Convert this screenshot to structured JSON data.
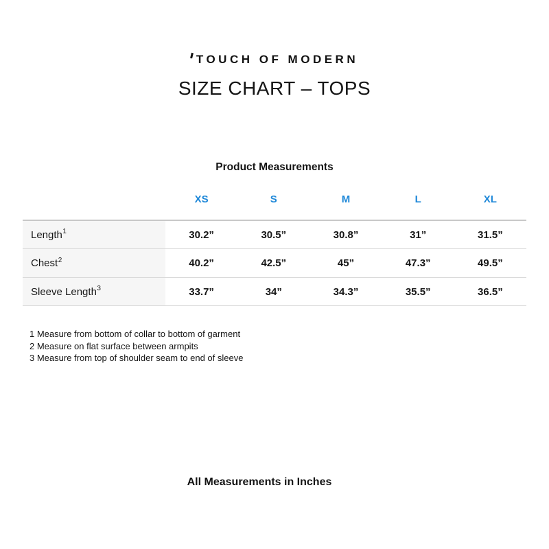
{
  "brand": {
    "logo_text": "TOUCH OF MODERN"
  },
  "header": {
    "title": "SIZE CHART – TOPS"
  },
  "table": {
    "caption": "Product Measurements",
    "accent_color": "#1d87d8",
    "label_column_bg": "#f6f6f6",
    "size_headers": [
      "XS",
      "S",
      "M",
      "L",
      "XL"
    ],
    "rows": [
      {
        "label": "Length",
        "sup": "1",
        "values": [
          "30.2”",
          "30.5”",
          "30.8”",
          "31”",
          "31.5”"
        ]
      },
      {
        "label": "Chest",
        "sup": "2",
        "values": [
          "40.2”",
          "42.5”",
          "45”",
          "47.3”",
          "49.5”"
        ]
      },
      {
        "label": "Sleeve Length",
        "sup": "3",
        "values": [
          "33.7”",
          "34”",
          "34.3”",
          "35.5”",
          "36.5”"
        ]
      }
    ]
  },
  "footnotes": [
    "1 Measure from bottom of collar to bottom of garment",
    "2 Measure on flat surface between armpits",
    "3 Measure from top of shoulder seam to end of sleeve"
  ],
  "footer": {
    "note": "All Measurements in Inches"
  }
}
